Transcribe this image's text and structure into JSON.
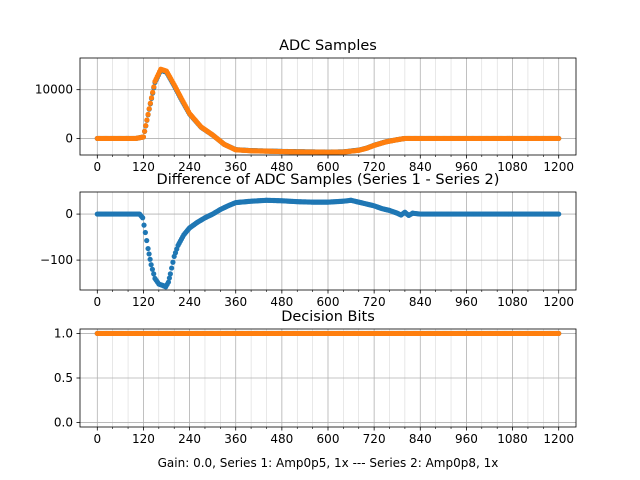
{
  "figure": {
    "caption": "Gain: 0.0, Series 1: Amp0p5, 1x --- Series 2: Amp0p8, 1x"
  },
  "colors": {
    "series1": "#1f77b4",
    "series2": "#ff7f0e",
    "grid": "#b0b0b0",
    "axis": "#000000"
  },
  "chart_data": [
    {
      "type": "scatter",
      "title": "ADC Samples",
      "xlabel": "",
      "ylabel": "",
      "xlim": [
        -45,
        1245
      ],
      "ylim": [
        -3400,
        16500
      ],
      "x_ticks": [
        0,
        120,
        240,
        360,
        480,
        600,
        720,
        840,
        960,
        1080,
        1200
      ],
      "x_minor_step": 40,
      "y_ticks": [
        0,
        10000
      ],
      "grid": true,
      "series": [
        {
          "color": "#1f77b4",
          "x": [
            0,
            100,
            120,
            135,
            150,
            165,
            180,
            200,
            220,
            240,
            270,
            300,
            330,
            360,
            400,
            450,
            500,
            550,
            600,
            640,
            680,
            700,
            720,
            750,
            780,
            800,
            840,
            900,
            1000,
            1100,
            1200
          ],
          "values": [
            0,
            0,
            300,
            6000,
            11500,
            14000,
            13600,
            10800,
            7800,
            5000,
            2300,
            700,
            -1200,
            -2300,
            -2500,
            -2600,
            -2700,
            -2750,
            -2800,
            -2750,
            -2400,
            -2000,
            -1400,
            -700,
            -250,
            0,
            0,
            0,
            0,
            0,
            0
          ]
        },
        {
          "color": "#ff7f0e",
          "x": [
            0,
            100,
            120,
            135,
            150,
            165,
            180,
            200,
            220,
            240,
            270,
            300,
            330,
            360,
            400,
            450,
            500,
            550,
            600,
            640,
            680,
            700,
            720,
            750,
            780,
            800,
            840,
            900,
            1000,
            1100,
            1200
          ],
          "values": [
            0,
            0,
            300,
            6100,
            11700,
            14200,
            13800,
            11000,
            8000,
            5100,
            2350,
            720,
            -1200,
            -2330,
            -2530,
            -2630,
            -2730,
            -2780,
            -2830,
            -2790,
            -2430,
            -2020,
            -1420,
            -710,
            -255,
            0,
            0,
            0,
            0,
            0,
            0
          ]
        }
      ]
    },
    {
      "type": "scatter",
      "title": "Difference of ADC Samples (Series 1 - Series 2)",
      "xlabel": "",
      "ylabel": "",
      "xlim": [
        -45,
        1245
      ],
      "ylim": [
        -165,
        48
      ],
      "x_ticks": [
        0,
        120,
        240,
        360,
        480,
        600,
        720,
        840,
        960,
        1080,
        1200
      ],
      "x_minor_step": 40,
      "y_ticks": [
        -100,
        0
      ],
      "grid": true,
      "series": [
        {
          "color": "#1f77b4",
          "x": [
            0,
            60,
            110,
            118,
            125,
            132,
            140,
            150,
            160,
            170,
            178,
            185,
            190,
            200,
            210,
            225,
            240,
            260,
            280,
            300,
            320,
            340,
            360,
            400,
            440,
            480,
            520,
            560,
            600,
            640,
            660,
            680,
            700,
            720,
            740,
            760,
            780,
            790,
            800,
            810,
            820,
            840,
            880,
            920,
            960,
            1000,
            1050,
            1100,
            1150,
            1200
          ],
          "values": [
            0,
            0,
            0,
            -8,
            -40,
            -75,
            -110,
            -140,
            -152,
            -155,
            -158,
            -148,
            -130,
            -92,
            -68,
            -45,
            -30,
            -18,
            -8,
            0,
            10,
            18,
            25,
            28,
            30,
            29,
            27,
            26,
            26,
            28,
            30,
            26,
            22,
            18,
            12,
            8,
            2,
            -2,
            4,
            -3,
            2,
            0,
            0,
            0,
            0,
            0,
            0,
            0,
            0,
            0
          ]
        }
      ]
    },
    {
      "type": "scatter",
      "title": "Decision Bits",
      "xlabel": "",
      "ylabel": "",
      "xlim": [
        -45,
        1245
      ],
      "ylim": [
        -0.05,
        1.05
      ],
      "x_ticks": [
        0,
        120,
        240,
        360,
        480,
        600,
        720,
        840,
        960,
        1080,
        1200
      ],
      "x_minor_step": 40,
      "y_ticks": [
        0.0,
        0.5,
        1.0
      ],
      "grid": true,
      "series": [
        {
          "color": "#1f77b4",
          "x": [
            0,
            1200
          ],
          "values": [
            1,
            1
          ]
        },
        {
          "color": "#ff7f0e",
          "x": [
            0,
            1200
          ],
          "values": [
            1,
            1
          ]
        }
      ]
    }
  ]
}
